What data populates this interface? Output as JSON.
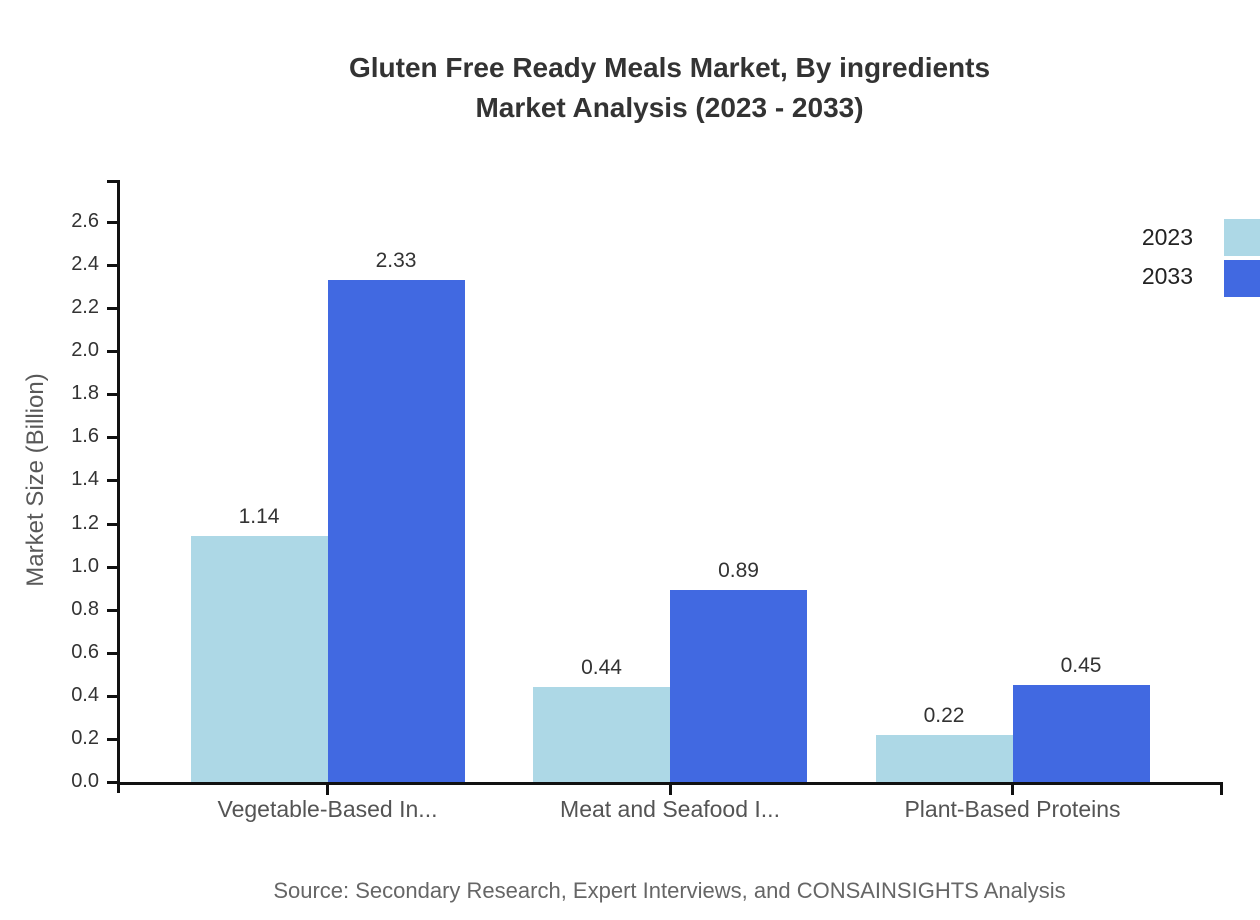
{
  "title": {
    "line1": "Gluten Free Ready Meals Market, By ingredients",
    "line2": "Market Analysis (2023 - 2033)"
  },
  "chart_data": {
    "type": "bar",
    "title": "Gluten Free Ready Meals Market, By ingredients Market Analysis (2023 - 2033)",
    "categories": [
      "Vegetable-Based In...",
      "Meat and Seafood I...",
      "Plant-Based Proteins"
    ],
    "series": [
      {
        "name": "2023",
        "color": "#ADD8E6",
        "values": [
          1.14,
          0.44,
          0.22
        ]
      },
      {
        "name": "2033",
        "color": "#4169E1",
        "values": [
          2.33,
          0.89,
          0.45
        ]
      }
    ],
    "value_labels": [
      [
        "1.14",
        "0.44",
        "0.22"
      ],
      [
        "2.33",
        "0.89",
        "0.45"
      ]
    ],
    "xlabel": "",
    "ylabel": "Market Size (Billion)",
    "ylim": [
      0.0,
      2.6
    ],
    "ytick_step": 0.2,
    "ytick_labels": [
      "0.0",
      "0.2",
      "0.4",
      "0.6",
      "0.8",
      "1.0",
      "1.2",
      "1.4",
      "1.6",
      "1.8",
      "2.0",
      "2.2",
      "2.4",
      "2.6"
    ],
    "grid": false,
    "legend_position": "top-right"
  },
  "source": {
    "text": "Source: Secondary Research, Expert Interviews, and CONSAINSIGHTS Analysis"
  },
  "colors": {
    "background": "#FFFFFF",
    "title": "#333333",
    "axis": "#111111",
    "ytick_label": "#333333",
    "category_label": "#545454",
    "value_label": "#333333",
    "ylabel": "#595959",
    "legend_text": "#222222",
    "source_text": "#666666",
    "series_2023": "#ADD8E6",
    "series_2033": "#4169E1"
  }
}
